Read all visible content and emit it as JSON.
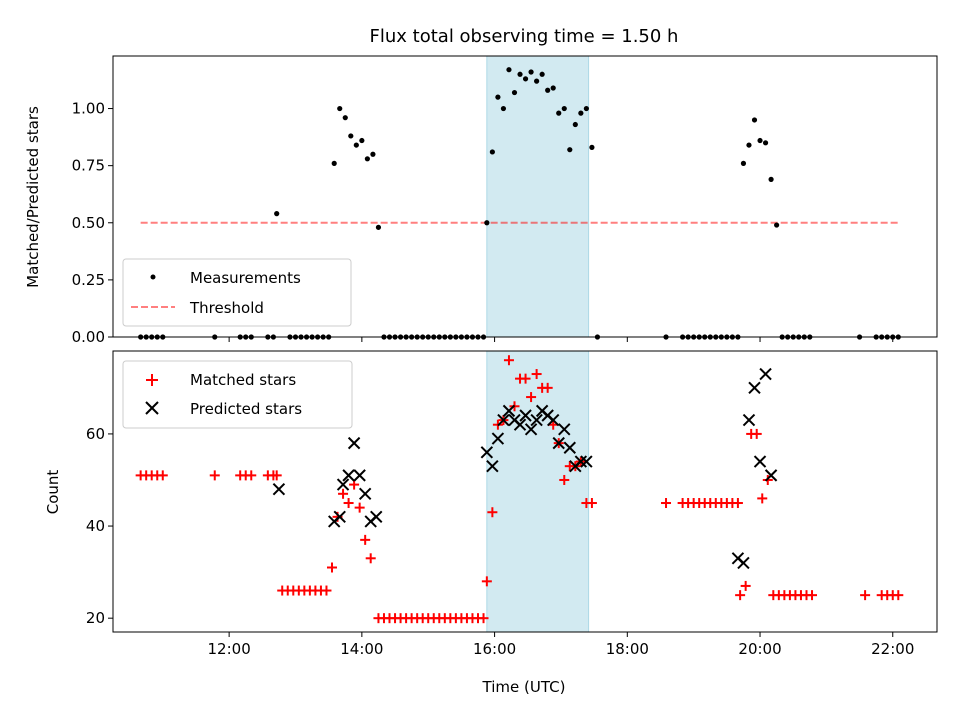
{
  "title": "Flux total observing time = 1.50 h",
  "colors": {
    "shade": "#add8e6",
    "matched": "#ff0000",
    "predicted": "#000000",
    "measurement": "#000000",
    "threshold": "#ff0000"
  },
  "chart_data": [
    {
      "type": "scatter",
      "ylabel": "Matched/Predicted stars",
      "xlim": [
        "10:15",
        "22:40"
      ],
      "ylim": [
        0,
        1.23
      ],
      "yticks": [
        0.0,
        0.25,
        0.5,
        0.75,
        1.0
      ],
      "ytick_labels": [
        "0.00",
        "0.25",
        "0.50",
        "0.75",
        "1.00"
      ],
      "grid": false,
      "legend": "lower-left",
      "shaded_region": [
        "15:53",
        "17:25"
      ],
      "series": [
        {
          "name": "Measurements",
          "marker": "dot",
          "points": [
            [
              "10:40",
              0
            ],
            [
              "10:45",
              0
            ],
            [
              "10:50",
              0
            ],
            [
              "10:55",
              0
            ],
            [
              "11:00",
              0
            ],
            [
              "11:47",
              0
            ],
            [
              "12:10",
              0
            ],
            [
              "12:15",
              0
            ],
            [
              "12:20",
              0
            ],
            [
              "12:35",
              0
            ],
            [
              "12:40",
              0
            ],
            [
              "12:43",
              0.54
            ],
            [
              "12:55",
              0
            ],
            [
              "13:00",
              0
            ],
            [
              "13:05",
              0
            ],
            [
              "13:10",
              0
            ],
            [
              "13:15",
              0
            ],
            [
              "13:20",
              0
            ],
            [
              "13:25",
              0
            ],
            [
              "13:30",
              0
            ],
            [
              "13:35",
              0.76
            ],
            [
              "13:40",
              1.0
            ],
            [
              "13:45",
              0.96
            ],
            [
              "13:50",
              0.88
            ],
            [
              "13:55",
              0.84
            ],
            [
              "14:00",
              0.86
            ],
            [
              "14:05",
              0.78
            ],
            [
              "14:10",
              0.8
            ],
            [
              "14:15",
              0.48
            ],
            [
              "14:20",
              0
            ],
            [
              "14:25",
              0
            ],
            [
              "14:30",
              0
            ],
            [
              "14:35",
              0
            ],
            [
              "14:40",
              0
            ],
            [
              "14:45",
              0
            ],
            [
              "14:50",
              0
            ],
            [
              "14:55",
              0
            ],
            [
              "15:00",
              0
            ],
            [
              "15:05",
              0
            ],
            [
              "15:10",
              0
            ],
            [
              "15:15",
              0
            ],
            [
              "15:20",
              0
            ],
            [
              "15:25",
              0
            ],
            [
              "15:30",
              0
            ],
            [
              "15:35",
              0
            ],
            [
              "15:40",
              0
            ],
            [
              "15:45",
              0
            ],
            [
              "15:50",
              0
            ],
            [
              "15:53",
              0.5
            ],
            [
              "15:58",
              0.81
            ],
            [
              "16:03",
              1.05
            ],
            [
              "16:08",
              1.0
            ],
            [
              "16:13",
              1.17
            ],
            [
              "16:18",
              1.07
            ],
            [
              "16:23",
              1.15
            ],
            [
              "16:28",
              1.13
            ],
            [
              "16:33",
              1.16
            ],
            [
              "16:38",
              1.12
            ],
            [
              "16:43",
              1.15
            ],
            [
              "16:48",
              1.08
            ],
            [
              "16:53",
              1.09
            ],
            [
              "16:58",
              0.98
            ],
            [
              "17:03",
              1.0
            ],
            [
              "17:08",
              0.82
            ],
            [
              "17:13",
              0.93
            ],
            [
              "17:18",
              0.98
            ],
            [
              "17:23",
              1.0
            ],
            [
              "17:28",
              0.83
            ],
            [
              "17:33",
              0
            ],
            [
              "18:35",
              0
            ],
            [
              "18:50",
              0
            ],
            [
              "18:55",
              0
            ],
            [
              "19:00",
              0
            ],
            [
              "19:05",
              0
            ],
            [
              "19:10",
              0
            ],
            [
              "19:15",
              0
            ],
            [
              "19:20",
              0
            ],
            [
              "19:25",
              0
            ],
            [
              "19:30",
              0
            ],
            [
              "19:35",
              0
            ],
            [
              "19:40",
              0
            ],
            [
              "19:45",
              0.76
            ],
            [
              "19:50",
              0.84
            ],
            [
              "19:55",
              0.95
            ],
            [
              "20:00",
              0.86
            ],
            [
              "20:05",
              0.85
            ],
            [
              "20:10",
              0.69
            ],
            [
              "20:15",
              0.49
            ],
            [
              "20:20",
              0
            ],
            [
              "20:25",
              0
            ],
            [
              "20:30",
              0
            ],
            [
              "20:35",
              0
            ],
            [
              "20:40",
              0
            ],
            [
              "20:45",
              0
            ],
            [
              "21:30",
              0
            ],
            [
              "21:45",
              0
            ],
            [
              "21:50",
              0
            ],
            [
              "21:55",
              0
            ],
            [
              "22:00",
              0
            ],
            [
              "22:05",
              0
            ]
          ]
        },
        {
          "name": "Threshold",
          "line": "dashed",
          "points": [
            [
              "10:40",
              0.5
            ],
            [
              "22:05",
              0.5
            ]
          ]
        }
      ]
    },
    {
      "type": "scatter",
      "xlabel": "Time (UTC)",
      "ylabel": "Count",
      "xlim": [
        "10:15",
        "22:40"
      ],
      "ylim": [
        17,
        78
      ],
      "yticks": [
        20,
        40,
        60
      ],
      "xticks": [
        "12:00",
        "14:00",
        "16:00",
        "18:00",
        "20:00",
        "22:00"
      ],
      "grid": false,
      "legend": "top-left",
      "shaded_region": [
        "15:53",
        "17:25"
      ],
      "series": [
        {
          "name": "Matched stars",
          "marker": "plus",
          "points": [
            [
              "10:40",
              51
            ],
            [
              "10:45",
              51
            ],
            [
              "10:50",
              51
            ],
            [
              "10:55",
              51
            ],
            [
              "11:00",
              51
            ],
            [
              "11:47",
              51
            ],
            [
              "12:10",
              51
            ],
            [
              "12:15",
              51
            ],
            [
              "12:20",
              51
            ],
            [
              "12:35",
              51
            ],
            [
              "12:40",
              51
            ],
            [
              "12:43",
              51
            ],
            [
              "12:48",
              26
            ],
            [
              "12:53",
              26
            ],
            [
              "12:58",
              26
            ],
            [
              "13:03",
              26
            ],
            [
              "13:08",
              26
            ],
            [
              "13:13",
              26
            ],
            [
              "13:18",
              26
            ],
            [
              "13:23",
              26
            ],
            [
              "13:28",
              26
            ],
            [
              "13:33",
              31
            ],
            [
              "13:38",
              42
            ],
            [
              "13:43",
              47
            ],
            [
              "13:48",
              45
            ],
            [
              "13:53",
              49
            ],
            [
              "13:58",
              44
            ],
            [
              "14:03",
              37
            ],
            [
              "14:08",
              33
            ],
            [
              "14:15",
              20
            ],
            [
              "14:20",
              20
            ],
            [
              "14:25",
              20
            ],
            [
              "14:30",
              20
            ],
            [
              "14:35",
              20
            ],
            [
              "14:40",
              20
            ],
            [
              "14:45",
              20
            ],
            [
              "14:50",
              20
            ],
            [
              "14:55",
              20
            ],
            [
              "15:00",
              20
            ],
            [
              "15:05",
              20
            ],
            [
              "15:10",
              20
            ],
            [
              "15:15",
              20
            ],
            [
              "15:20",
              20
            ],
            [
              "15:25",
              20
            ],
            [
              "15:30",
              20
            ],
            [
              "15:35",
              20
            ],
            [
              "15:40",
              20
            ],
            [
              "15:45",
              20
            ],
            [
              "15:50",
              20
            ],
            [
              "15:53",
              28
            ],
            [
              "15:58",
              43
            ],
            [
              "16:03",
              62
            ],
            [
              "16:08",
              63
            ],
            [
              "16:13",
              76
            ],
            [
              "16:18",
              66
            ],
            [
              "16:23",
              72
            ],
            [
              "16:28",
              72
            ],
            [
              "16:33",
              68
            ],
            [
              "16:38",
              73
            ],
            [
              "16:43",
              70
            ],
            [
              "16:48",
              70
            ],
            [
              "16:53",
              62
            ],
            [
              "16:58",
              58
            ],
            [
              "17:03",
              50
            ],
            [
              "17:08",
              53
            ],
            [
              "17:13",
              53
            ],
            [
              "17:18",
              54
            ],
            [
              "17:23",
              45
            ],
            [
              "17:28",
              45
            ],
            [
              "18:35",
              45
            ],
            [
              "18:50",
              45
            ],
            [
              "18:55",
              45
            ],
            [
              "19:00",
              45
            ],
            [
              "19:05",
              45
            ],
            [
              "19:10",
              45
            ],
            [
              "19:15",
              45
            ],
            [
              "19:20",
              45
            ],
            [
              "19:25",
              45
            ],
            [
              "19:30",
              45
            ],
            [
              "19:35",
              45
            ],
            [
              "19:40",
              45
            ],
            [
              "19:42",
              25
            ],
            [
              "19:47",
              27
            ],
            [
              "19:52",
              60
            ],
            [
              "19:57",
              60
            ],
            [
              "20:02",
              46
            ],
            [
              "20:07",
              50
            ],
            [
              "20:12",
              25
            ],
            [
              "20:17",
              25
            ],
            [
              "20:22",
              25
            ],
            [
              "20:27",
              25
            ],
            [
              "20:32",
              25
            ],
            [
              "20:37",
              25
            ],
            [
              "20:42",
              25
            ],
            [
              "20:47",
              25
            ],
            [
              "21:35",
              25
            ],
            [
              "21:50",
              25
            ],
            [
              "21:55",
              25
            ],
            [
              "22:00",
              25
            ],
            [
              "22:05",
              25
            ]
          ]
        },
        {
          "name": "Predicted stars",
          "marker": "x",
          "points": [
            [
              "12:45",
              48
            ],
            [
              "13:35",
              41
            ],
            [
              "13:40",
              42
            ],
            [
              "13:43",
              49
            ],
            [
              "13:48",
              51
            ],
            [
              "13:53",
              58
            ],
            [
              "13:58",
              51
            ],
            [
              "14:03",
              47
            ],
            [
              "14:08",
              41
            ],
            [
              "14:13",
              42
            ],
            [
              "15:53",
              56
            ],
            [
              "15:58",
              53
            ],
            [
              "16:03",
              59
            ],
            [
              "16:08",
              63
            ],
            [
              "16:13",
              65
            ],
            [
              "16:18",
              63
            ],
            [
              "16:23",
              62
            ],
            [
              "16:28",
              64
            ],
            [
              "16:33",
              61
            ],
            [
              "16:38",
              63
            ],
            [
              "16:43",
              65
            ],
            [
              "16:48",
              64
            ],
            [
              "16:53",
              63
            ],
            [
              "16:58",
              58
            ],
            [
              "17:03",
              61
            ],
            [
              "17:08",
              57
            ],
            [
              "17:13",
              53
            ],
            [
              "17:18",
              54
            ],
            [
              "17:23",
              54
            ],
            [
              "19:40",
              33
            ],
            [
              "19:45",
              32
            ],
            [
              "19:50",
              63
            ],
            [
              "19:55",
              70
            ],
            [
              "20:00",
              54
            ],
            [
              "20:05",
              73
            ],
            [
              "20:10",
              51
            ]
          ]
        }
      ]
    }
  ]
}
